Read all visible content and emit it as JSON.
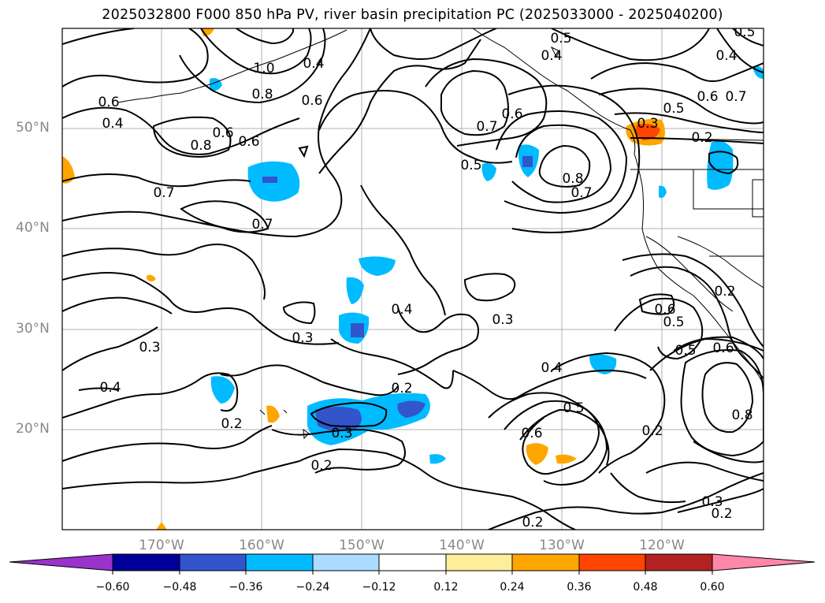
{
  "title": "2025032800 F000 850 hPa PV, river basin precipitation PC (2025033000 - 2025040200)",
  "lat_labels": [
    "50°N",
    "40°N",
    "30°N",
    "20°N"
  ],
  "lon_labels": [
    "170°W",
    "160°W",
    "150°W",
    "140°W",
    "130°W",
    "120°W"
  ],
  "colorbar": {
    "ticks": [
      "−0.60",
      "−0.48",
      "−0.36",
      "−0.24",
      "−0.12",
      "0.12",
      "0.24",
      "0.36",
      "0.48",
      "0.60"
    ],
    "colors": [
      "#9933cc",
      "#000099",
      "#3355cc",
      "#00bbff",
      "#aaddff",
      "#ffffff",
      "#ffee99",
      "#ffa500",
      "#ff4500",
      "#b22222",
      "#ff88aa"
    ]
  },
  "contour_labels": [
    "0.5",
    "0.4",
    "0.5",
    "0.4",
    "1.0",
    "0.4",
    "0.8",
    "0.6",
    "0.6",
    "0.4",
    "0.8",
    "0.6",
    "0.6",
    "0.7",
    "0.6",
    "0.5",
    "0.8",
    "0.7",
    "0.5",
    "0.6",
    "0.7",
    "0.3",
    "0.2",
    "0.7",
    "0.7",
    "0.4",
    "0.3",
    "0.3",
    "0.3",
    "0.4",
    "0.2",
    "0.2",
    "0.3",
    "0.2",
    "0.4",
    "0.5",
    "0.6",
    "0.6",
    "0.5",
    "0.5",
    "0.6",
    "0.2",
    "0.8",
    "0.2",
    "0.3",
    "0.2",
    "0.2"
  ]
}
